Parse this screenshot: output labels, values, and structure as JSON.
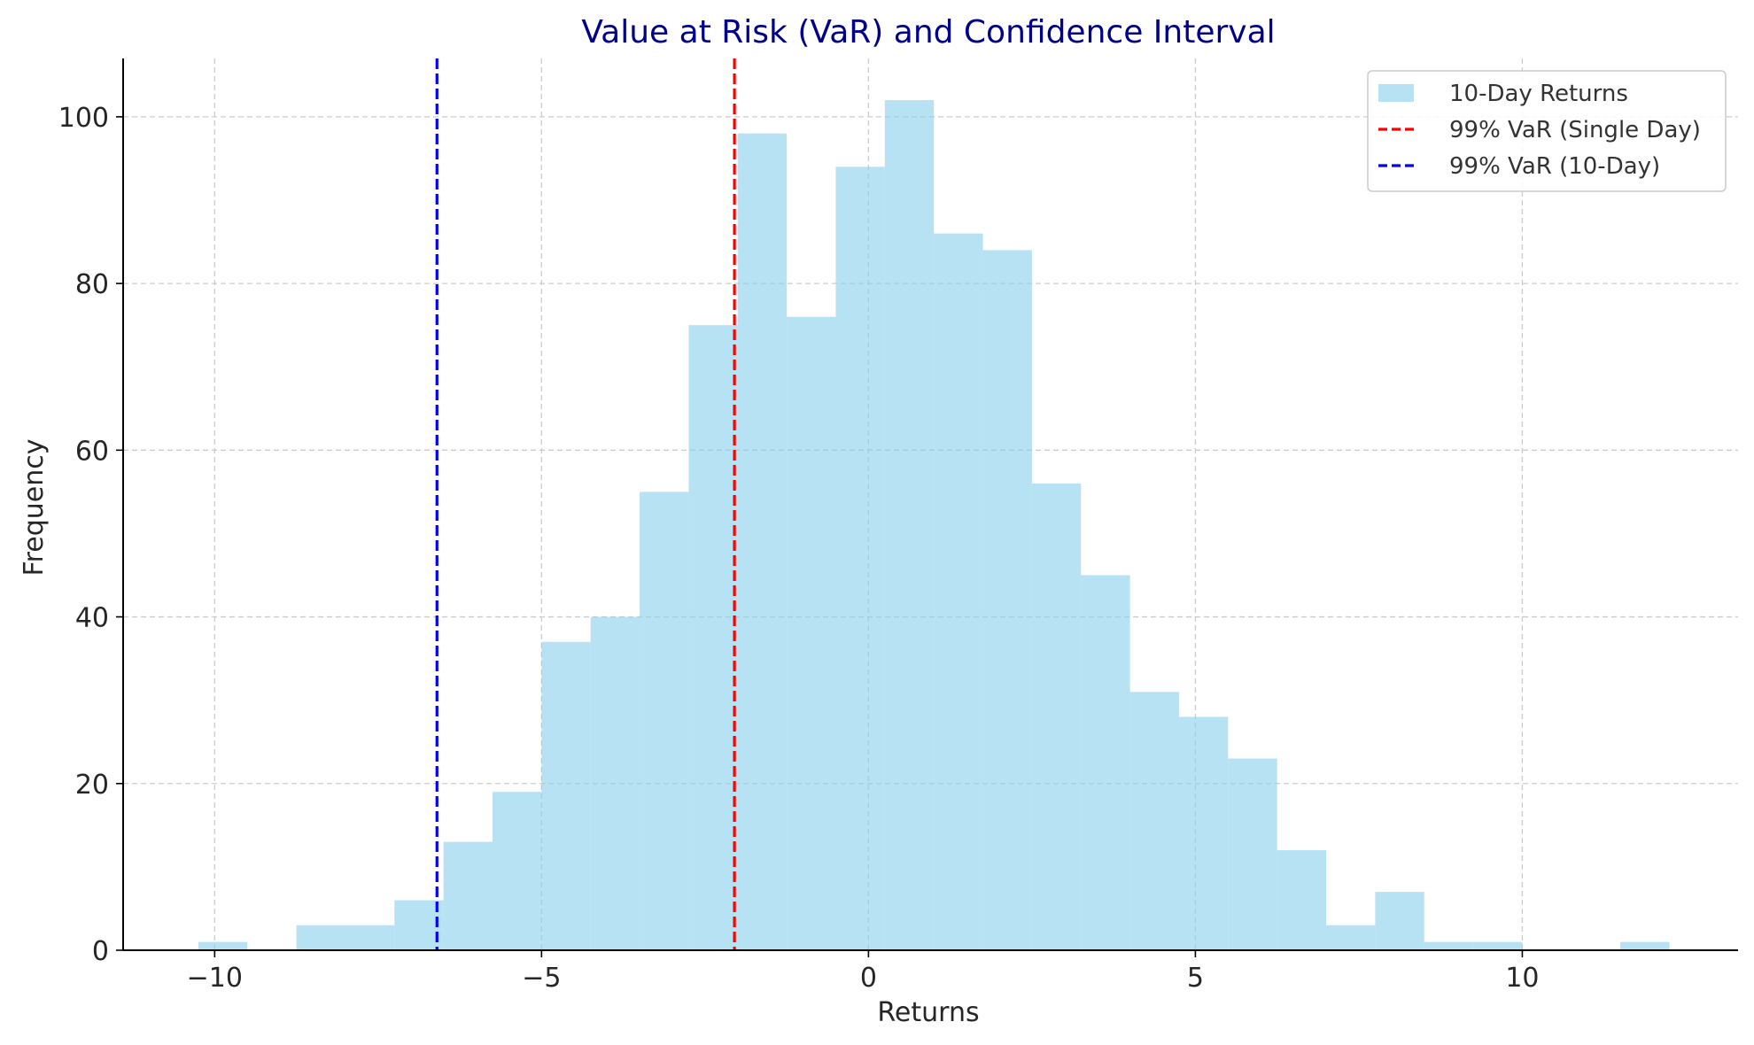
{
  "chart_data": {
    "type": "bar",
    "title": "Value at Risk (VaR) and Confidence Interval",
    "xlabel": "Returns",
    "ylabel": "Frequency",
    "xlim": [
      -11.4,
      13.3
    ],
    "ylim": [
      0,
      107
    ],
    "xticks": [
      -10,
      -5,
      0,
      5,
      10
    ],
    "xtick_labels": [
      "−10",
      "−5",
      "0",
      "5",
      "10"
    ],
    "yticks": [
      0,
      20,
      40,
      60,
      80,
      100
    ],
    "ytick_labels": [
      "0",
      "20",
      "40",
      "60",
      "80",
      "100"
    ],
    "grid": true,
    "legend_position": "top-right",
    "series": [
      {
        "name": "10-Day Returns",
        "kind": "histogram",
        "color": "#87ceeb",
        "bins": [
          {
            "x0": -10.25,
            "x1": -9.5,
            "count": 1
          },
          {
            "x0": -9.5,
            "x1": -8.75,
            "count": 0
          },
          {
            "x0": -8.75,
            "x1": -8.0,
            "count": 3
          },
          {
            "x0": -8.0,
            "x1": -7.25,
            "count": 3
          },
          {
            "x0": -7.25,
            "x1": -6.5,
            "count": 6
          },
          {
            "x0": -6.5,
            "x1": -5.75,
            "count": 13
          },
          {
            "x0": -5.75,
            "x1": -5.0,
            "count": 19
          },
          {
            "x0": -5.0,
            "x1": -4.25,
            "count": 37
          },
          {
            "x0": -4.25,
            "x1": -3.5,
            "count": 40
          },
          {
            "x0": -3.5,
            "x1": -2.75,
            "count": 55
          },
          {
            "x0": -2.75,
            "x1": -2.0,
            "count": 75
          },
          {
            "x0": -2.0,
            "x1": -1.25,
            "count": 98
          },
          {
            "x0": -1.25,
            "x1": -0.5,
            "count": 76
          },
          {
            "x0": -0.5,
            "x1": 0.25,
            "count": 94
          },
          {
            "x0": 0.25,
            "x1": 1.0,
            "count": 102
          },
          {
            "x0": 1.0,
            "x1": 1.75,
            "count": 86
          },
          {
            "x0": 1.75,
            "x1": 2.5,
            "count": 84
          },
          {
            "x0": 2.5,
            "x1": 3.25,
            "count": 56
          },
          {
            "x0": 3.25,
            "x1": 4.0,
            "count": 45
          },
          {
            "x0": 4.0,
            "x1": 4.75,
            "count": 31
          },
          {
            "x0": 4.75,
            "x1": 5.5,
            "count": 28
          },
          {
            "x0": 5.5,
            "x1": 6.25,
            "count": 23
          },
          {
            "x0": 6.25,
            "x1": 7.0,
            "count": 12
          },
          {
            "x0": 7.0,
            "x1": 7.75,
            "count": 3
          },
          {
            "x0": 7.75,
            "x1": 8.5,
            "count": 7
          },
          {
            "x0": 8.5,
            "x1": 9.25,
            "count": 1
          },
          {
            "x0": 9.25,
            "x1": 10.0,
            "count": 1
          },
          {
            "x0": 10.0,
            "x1": 10.75,
            "count": 0
          },
          {
            "x0": 10.75,
            "x1": 11.5,
            "count": 0
          },
          {
            "x0": 11.5,
            "x1": 12.25,
            "count": 1
          }
        ]
      },
      {
        "name": "99% VaR (Single Day)",
        "kind": "vline",
        "x": -2.05,
        "color": "#ff0000",
        "style": "dashed"
      },
      {
        "name": "99% VaR (10-Day)",
        "kind": "vline",
        "x": -6.6,
        "color": "#0000ff",
        "style": "dashed"
      }
    ],
    "colors": {
      "title": "#00008b",
      "grid": "#cccccc",
      "axis": "#000000"
    }
  }
}
